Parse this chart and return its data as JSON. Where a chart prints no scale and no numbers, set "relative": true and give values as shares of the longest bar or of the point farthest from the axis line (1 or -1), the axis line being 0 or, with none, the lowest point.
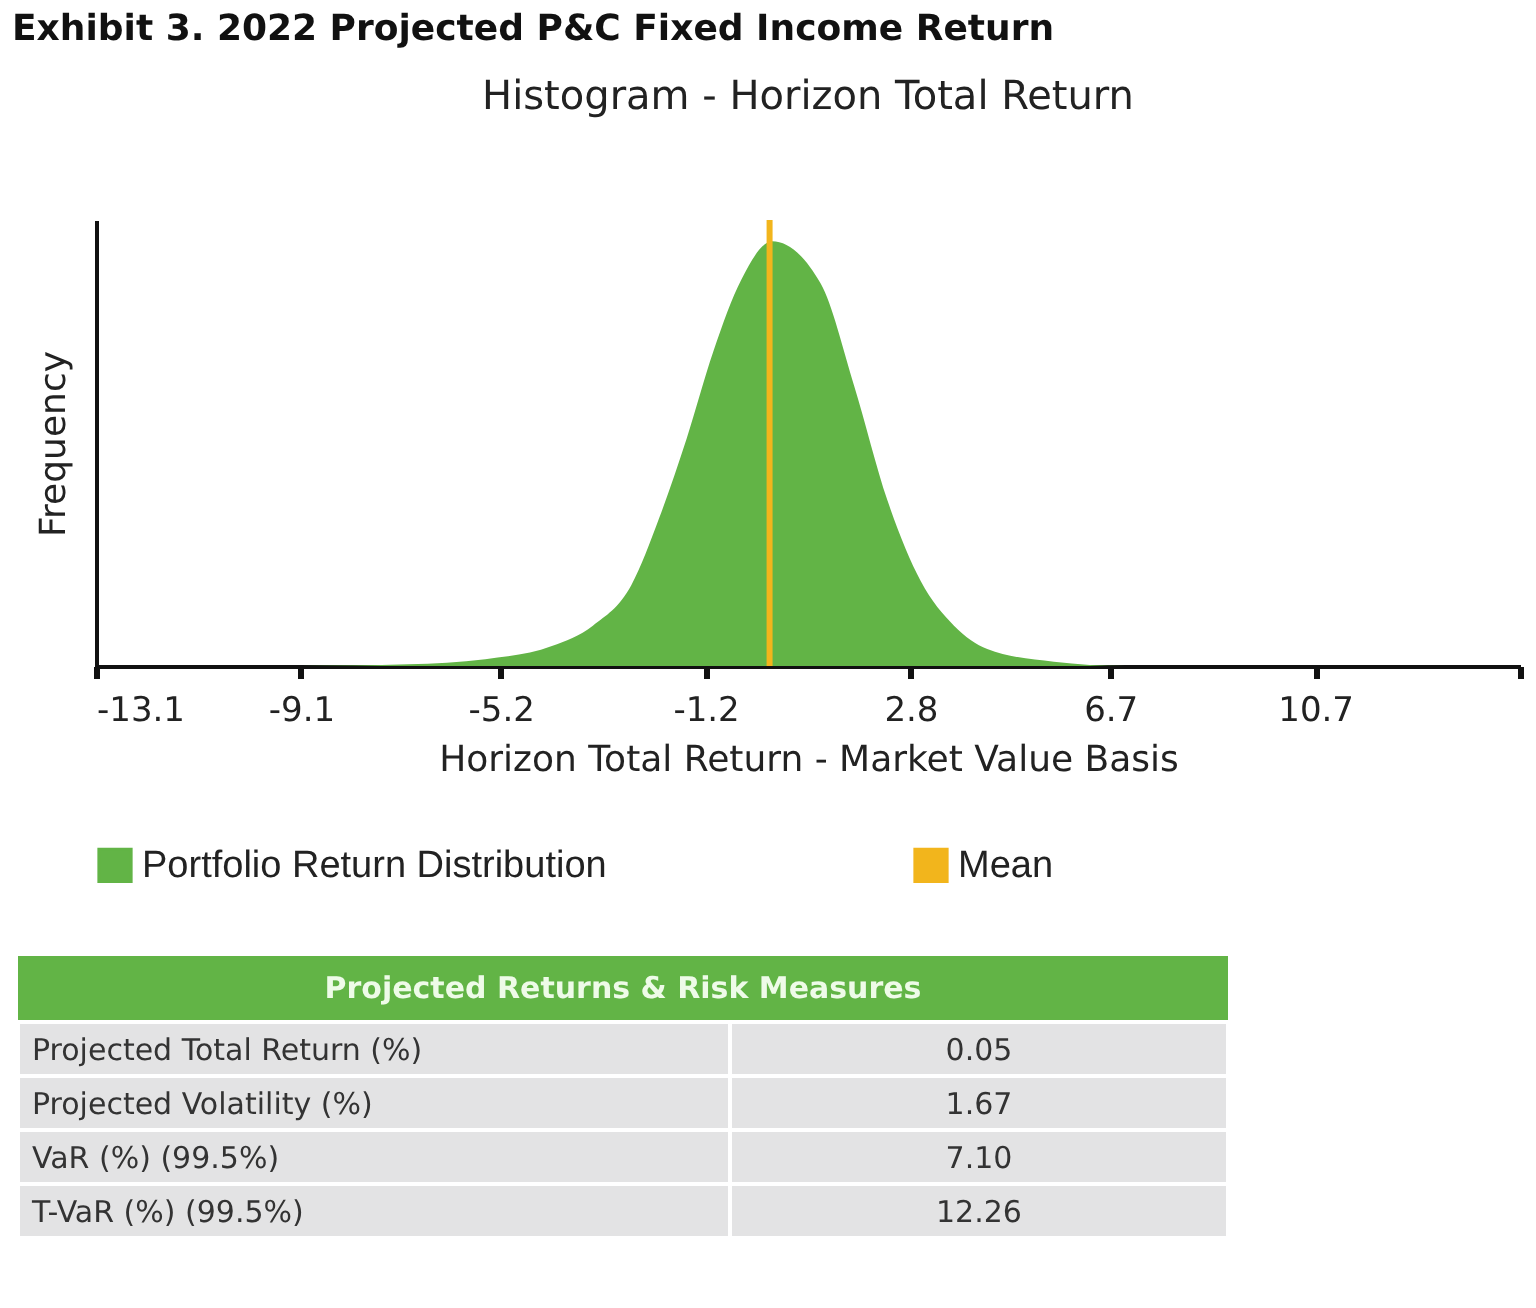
{
  "chart_data": {
    "type": "area",
    "title": "Exhibit 3. 2022 Projected P&C Fixed Income Return",
    "subtitle": "Histogram - Horizon Total Return",
    "xlabel": "Horizon Total Return - Market Value Basis",
    "ylabel": "Frequency",
    "relative": true,
    "x": [
      -13.1,
      -9.1,
      -7,
      -5.5,
      -4.2,
      -3.4,
      -2.65,
      -2.1,
      -1.57,
      -1.05,
      -0.5,
      0.1,
      1.05,
      1.7,
      2.35,
      3,
      3.65,
      4.3,
      5.6,
      7,
      14.7
    ],
    "series": [
      {
        "name": "Portfolio Return Distribution",
        "color": "#62b446",
        "values": [
          0,
          0,
          0.004,
          0.016,
          0.047,
          0.095,
          0.19,
          0.35,
          0.535,
          0.74,
          0.91,
          1,
          0.9,
          0.66,
          0.39,
          0.2,
          0.095,
          0.04,
          0.01,
          0,
          0
        ]
      }
    ],
    "xlim": [
      -13.1,
      14.7
    ],
    "xticks": [
      -13.1,
      -9.1,
      -5.2,
      -1.2,
      2.8,
      6.7,
      10.7,
      {
        "value": 14.7,
        "label": null
      }
    ],
    "ref_lines": [
      {
        "axis": "x",
        "value": 0.05,
        "label": "Mean",
        "color": "#f2b51c"
      }
    ],
    "legend": "bottom",
    "annotations": [
      "Projected Returns & Risk Measures",
      "Projected Total Return (%)",
      "0.05",
      "Projected Volatility  (%)",
      "1.67",
      "VaR (%) (99.5%)",
      "7.10",
      "T-VaR (%) (99.5%)",
      "12.26"
    ]
  }
}
